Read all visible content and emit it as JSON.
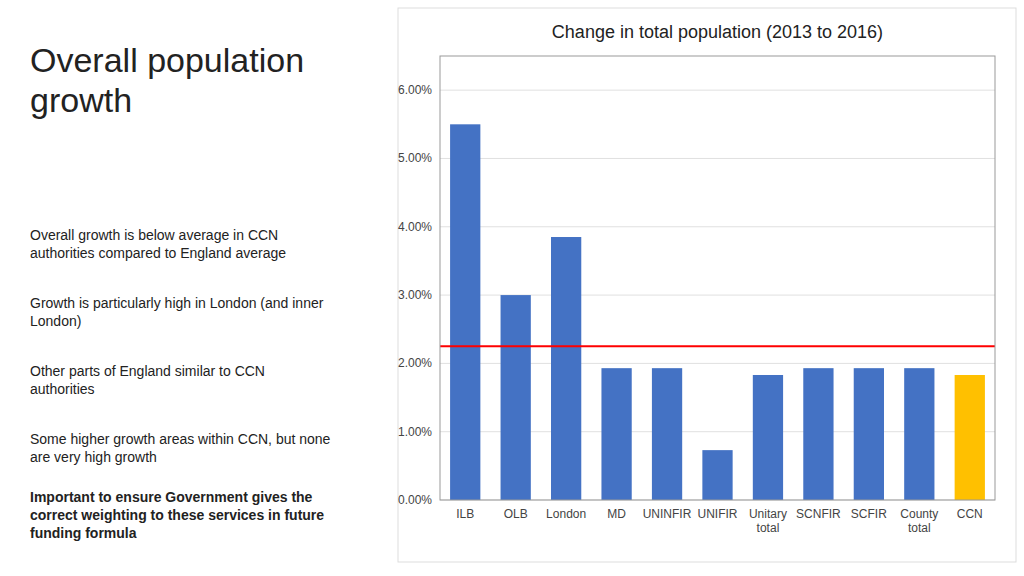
{
  "chart_data": {
    "type": "bar",
    "title": "Change in total population (2013 to 2016)",
    "categories": [
      "ILB",
      "OLB",
      "London",
      "MD",
      "UNINFIR",
      "UNIFIR",
      "Unitary\ntotal",
      "SCNFIR",
      "SCFIR",
      "County\ntotal",
      "CCN"
    ],
    "values": [
      0.055,
      0.03,
      0.0385,
      0.0193,
      0.0193,
      0.0073,
      0.0183,
      0.0193,
      0.0193,
      0.0193,
      0.0183
    ],
    "colors": [
      "#4472C4",
      "#4472C4",
      "#4472C4",
      "#4472C4",
      "#4472C4",
      "#4472C4",
      "#4472C4",
      "#4472C4",
      "#4472C4",
      "#4472C4",
      "#FFC000"
    ],
    "reference_line": {
      "value": 0.0225,
      "color": "#FF0000"
    },
    "ylim": [
      0,
      0.065
    ],
    "yticks": [
      {
        "value": 0.0,
        "label": "0.00%"
      },
      {
        "value": 0.01,
        "label": "1.00%"
      },
      {
        "value": 0.02,
        "label": "2.00%"
      },
      {
        "value": 0.03,
        "label": "3.00%"
      },
      {
        "value": 0.04,
        "label": "4.00%"
      },
      {
        "value": 0.05,
        "label": "5.00%"
      },
      {
        "value": 0.06,
        "label": "6.00%"
      }
    ],
    "grid": true,
    "annotations": [
      "Overall population\ngrowth",
      "Overall growth is below average in CCN\nauthorities compared to England average",
      "Growth is particularly high in London (and inner\nLondon)",
      "Other parts of England similar to CCN\nauthorities",
      "Some higher growth areas within CCN, but none\nare very high growth",
      "Important to ensure Government gives the\ncorrect weighting to these services in future\nfunding formula"
    ]
  }
}
